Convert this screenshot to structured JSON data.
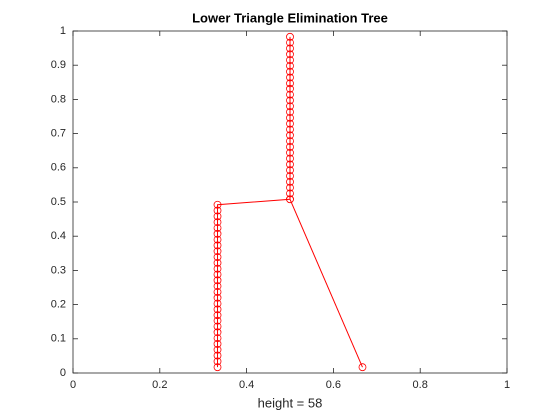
{
  "chart_data": {
    "type": "line",
    "title": "Lower Triangle Elimination Tree",
    "xlabel": "height = 58",
    "marker": "circle",
    "series": [
      {
        "color": "#ff0000",
        "x": [
          0.5,
          0.5,
          0.5,
          0.5,
          0.5,
          0.5,
          0.5,
          0.5,
          0.5,
          0.5,
          0.5,
          0.5,
          0.5,
          0.5,
          0.5,
          0.5,
          0.5,
          0.5,
          0.5,
          0.5,
          0.5,
          0.5,
          0.5,
          0.5,
          0.5,
          0.5,
          0.5,
          0.5,
          0.5,
          0.333,
          0.333,
          0.333,
          0.333,
          0.333,
          0.333,
          0.333,
          0.333,
          0.333,
          0.333,
          0.333,
          0.333,
          0.333,
          0.333,
          0.333,
          0.333,
          0.333,
          0.333,
          0.333,
          0.333,
          0.333,
          0.333,
          0.333,
          0.333,
          0.333,
          0.333,
          0.333,
          0.333,
          0.333
        ],
        "y": [
          0.983,
          0.966,
          0.949,
          0.932,
          0.915,
          0.898,
          0.881,
          0.864,
          0.847,
          0.831,
          0.814,
          0.797,
          0.78,
          0.763,
          0.746,
          0.729,
          0.712,
          0.695,
          0.678,
          0.661,
          0.644,
          0.627,
          0.61,
          0.593,
          0.576,
          0.559,
          0.542,
          0.525,
          0.508,
          0.492,
          0.475,
          0.458,
          0.441,
          0.424,
          0.407,
          0.39,
          0.373,
          0.356,
          0.339,
          0.322,
          0.305,
          0.288,
          0.271,
          0.254,
          0.237,
          0.22,
          0.203,
          0.186,
          0.169,
          0.153,
          0.136,
          0.119,
          0.102,
          0.085,
          0.068,
          0.051,
          0.034,
          0.017
        ]
      },
      {
        "color": "#ff0000",
        "x": [
          0.5,
          0.667
        ],
        "y": [
          0.508,
          0.017
        ]
      }
    ],
    "xlim": [
      0,
      1
    ],
    "xticks": [
      0,
      0.2,
      0.4,
      0.6,
      0.8,
      1
    ],
    "ylim": [
      0,
      1
    ],
    "yticks": [
      0,
      0.1,
      0.2,
      0.3,
      0.4,
      0.5,
      0.6,
      0.7,
      0.8,
      0.9,
      1
    ],
    "grid": false
  }
}
